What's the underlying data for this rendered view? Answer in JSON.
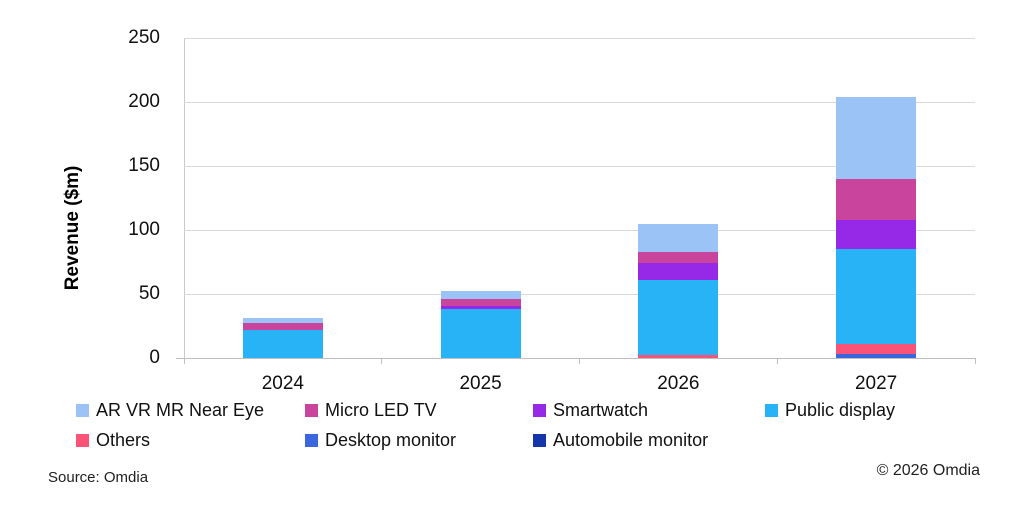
{
  "chart_data": {
    "type": "bar",
    "stacked": true,
    "title": "",
    "ylabel": "Revenue ($m)",
    "xlabel": "",
    "ylim": [
      0,
      250
    ],
    "yticks": [
      0,
      50,
      100,
      150,
      200,
      250
    ],
    "grid": true,
    "legend_position": "bottom",
    "categories": [
      "2024",
      "2025",
      "2026",
      "2027"
    ],
    "series": [
      {
        "name": "AR VR MR Near Eye",
        "color": "#9cc3f6",
        "values": [
          4,
          6,
          22,
          64
        ]
      },
      {
        "name": "Micro LED TV",
        "color": "#c9449c",
        "values": [
          5,
          5,
          9,
          32
        ]
      },
      {
        "name": "Smartwatch",
        "color": "#9629e8",
        "values": [
          0,
          3,
          13,
          23
        ]
      },
      {
        "name": "Public display",
        "color": "#29b3f7",
        "values": [
          22,
          38,
          59,
          74
        ]
      },
      {
        "name": "Others",
        "color": "#fa5377",
        "values": [
          0,
          0,
          2,
          8
        ]
      },
      {
        "name": "Desktop monitor",
        "color": "#3a67de",
        "values": [
          0,
          0,
          0,
          3
        ]
      },
      {
        "name": "Automobile monitor",
        "color": "#1436a8",
        "values": [
          0,
          0,
          0,
          0
        ]
      }
    ]
  },
  "footer": {
    "source": "Source: Omdia",
    "copyright": "© 2026 Omdia"
  }
}
